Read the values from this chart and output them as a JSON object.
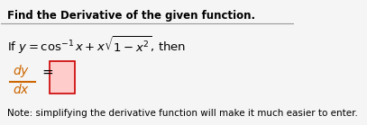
{
  "title": "Find the Derivative of the given function.",
  "line1": "If $y = \\cos^{-1} x + x\\sqrt{1 - x^2}$, then",
  "note": "Note: simplifying the derivative function will make it much easier to enter.",
  "bg_color": "#f5f5f5",
  "title_color": "#000000",
  "body_color": "#000000",
  "frac_color": "#cc6600",
  "note_color": "#000000",
  "box_color": "#ffcccc",
  "box_border": "#cc0000",
  "line_color": "#999999"
}
